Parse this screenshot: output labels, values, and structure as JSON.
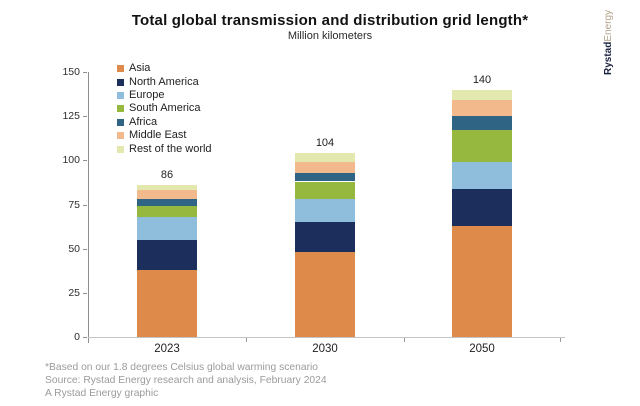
{
  "chart_data": {
    "type": "bar",
    "stacked": true,
    "title": "Total global transmission and distribution grid length*",
    "subtitle": "Million kilometers",
    "categories": [
      "2023",
      "2030",
      "2050"
    ],
    "series": [
      {
        "name": "Asia",
        "color": "#DE8A4B",
        "values": [
          38,
          48,
          63
        ]
      },
      {
        "name": "North America",
        "color": "#1C2E5B",
        "values": [
          17,
          17,
          21
        ]
      },
      {
        "name": "Europe",
        "color": "#8FBEDC",
        "values": [
          13,
          13,
          15
        ]
      },
      {
        "name": "South America",
        "color": "#97B83E",
        "values": [
          6,
          10,
          18
        ]
      },
      {
        "name": "Africa",
        "color": "#2F6485",
        "values": [
          4,
          5,
          8
        ]
      },
      {
        "name": "Middle East",
        "color": "#F2BA8C",
        "values": [
          5,
          6,
          9
        ]
      },
      {
        "name": "Rest of the world",
        "color": "#E3E9AE",
        "values": [
          3,
          5,
          6
        ]
      }
    ],
    "totals": [
      86,
      104,
      140
    ],
    "ylim": [
      0,
      150
    ],
    "yticks": [
      0,
      25,
      50,
      75,
      100,
      125,
      150
    ],
    "xlabel": "",
    "ylabel": "Million kilometers",
    "grid": false,
    "legend_position": "top-left"
  },
  "logo": {
    "brand_bold": "Rystad",
    "brand_light": "Energy"
  },
  "footnote": {
    "lines": [
      "*Based on our 1.8 degrees Celsius global warming scenario",
      "Source: Rystad Energy research and analysis, February 2024",
      "A Rystad Energy graphic"
    ]
  }
}
